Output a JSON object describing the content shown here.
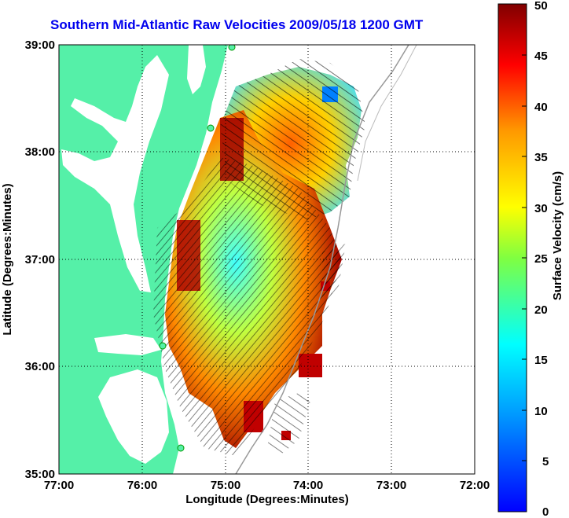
{
  "title": "Southern Mid-Atlantic Raw Velocities 2009/05/18 1200 GMT",
  "map": {
    "xlabel": "Longitude (Degrees:Minutes)",
    "ylabel": "Latitude (Degrees:Minutes)",
    "x_ticks": [
      "77:00",
      "76:00",
      "75:00",
      "74:00",
      "73:00",
      "72:00"
    ],
    "y_ticks": [
      "39:00",
      "38:00",
      "37:00",
      "36:00",
      "35:00"
    ],
    "lon_range": [
      -77,
      -72
    ],
    "lat_range": [
      35,
      39
    ],
    "land_color": "#55f0a8",
    "ocean_color": "#ffffff",
    "grid": "dotted"
  },
  "colorbar": {
    "label": "Surface Velocity (cm/s)",
    "ticks": [
      "50",
      "45",
      "40",
      "35",
      "30",
      "25",
      "20",
      "15",
      "10",
      "5",
      "0"
    ],
    "range": [
      0,
      50
    ],
    "colormap": "jet"
  }
}
